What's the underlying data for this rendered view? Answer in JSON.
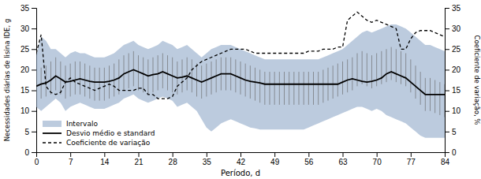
{
  "chart_data": {
    "type": "line",
    "xlabel": "Período, d",
    "ylabel": "Necessidades diárias de lisina IDE, g",
    "y2label": "Coeficiente de variação, %",
    "xlim": [
      0,
      84
    ],
    "xticks": [
      0,
      7,
      14,
      21,
      28,
      35,
      42,
      49,
      56,
      63,
      70,
      77,
      84
    ],
    "ylim": [
      0,
      35
    ],
    "yticks": [
      0,
      5,
      10,
      15,
      20,
      25,
      30,
      35
    ],
    "y2lim": [
      0,
      35
    ],
    "y2ticks": [
      0,
      5,
      10,
      15,
      20,
      25,
      30,
      35
    ],
    "grid": false,
    "legend": "lower left",
    "x": [
      0,
      1,
      2,
      3,
      4,
      5,
      6,
      7,
      8,
      9,
      10,
      11,
      12,
      13,
      14,
      15,
      16,
      17,
      18,
      19,
      20,
      21,
      22,
      23,
      24,
      25,
      26,
      27,
      28,
      29,
      30,
      31,
      32,
      33,
      34,
      35,
      36,
      37,
      38,
      39,
      40,
      41,
      42,
      43,
      44,
      45,
      46,
      47,
      48,
      49,
      50,
      51,
      52,
      53,
      54,
      55,
      56,
      57,
      58,
      59,
      60,
      61,
      62,
      63,
      64,
      65,
      66,
      67,
      68,
      69,
      70,
      71,
      72,
      73,
      74,
      75,
      76,
      77,
      78,
      79,
      80,
      81,
      82,
      83,
      84
    ],
    "series": [
      {
        "name": "Intervalo",
        "type": "area",
        "color": "#8fa8c8",
        "lower": [
          11.0,
          10.0,
          11.0,
          12.0,
          13.0,
          12.0,
          10.0,
          11.0,
          11.5,
          12.0,
          11.5,
          11.0,
          10.5,
          10.5,
          10.5,
          11.0,
          11.5,
          12.0,
          13.0,
          13.5,
          14.0,
          13.0,
          12.5,
          12.0,
          12.5,
          13.0,
          13.5,
          13.0,
          12.5,
          11.0,
          11.5,
          12.0,
          11.0,
          10.0,
          8.0,
          6.0,
          5.0,
          6.0,
          7.0,
          7.5,
          8.0,
          7.5,
          7.0,
          6.5,
          6.0,
          5.8,
          5.5,
          5.5,
          5.5,
          5.5,
          5.5,
          5.5,
          5.5,
          5.5,
          5.5,
          5.5,
          6.0,
          6.5,
          7.0,
          7.5,
          8.0,
          8.5,
          9.0,
          9.5,
          10.0,
          10.5,
          11.0,
          11.0,
          10.5,
          10.0,
          10.5,
          10.0,
          9.0,
          8.5,
          8.0,
          7.5,
          7.0,
          6.0,
          5.0,
          4.0,
          3.5,
          3.5,
          3.5,
          3.5,
          3.5
        ],
        "upper": [
          23.5,
          28.0,
          27.0,
          25.0,
          25.0,
          24.0,
          23.0,
          24.0,
          24.5,
          24.0,
          24.0,
          23.5,
          23.0,
          23.0,
          23.0,
          23.5,
          24.0,
          25.0,
          26.0,
          26.5,
          27.0,
          26.0,
          25.5,
          25.0,
          25.5,
          26.0,
          27.0,
          26.5,
          26.0,
          25.0,
          25.5,
          26.0,
          25.0,
          24.0,
          23.0,
          24.0,
          25.0,
          25.5,
          26.0,
          26.0,
          26.0,
          25.5,
          25.0,
          24.5,
          24.0,
          23.5,
          23.0,
          22.5,
          22.5,
          22.5,
          22.5,
          22.5,
          22.5,
          22.5,
          22.5,
          22.5,
          22.5,
          22.5,
          22.5,
          23.0,
          23.5,
          24.0,
          24.5,
          25.0,
          26.0,
          27.0,
          28.0,
          29.0,
          29.5,
          29.0,
          29.5,
          30.0,
          30.5,
          31.0,
          31.0,
          30.5,
          30.0,
          29.0,
          28.0,
          27.0,
          26.0,
          26.0,
          25.5,
          25.0,
          24.5
        ]
      },
      {
        "type": "errorbar",
        "color": "#666666",
        "lower": [
          12.5,
          13.0,
          13.5,
          14.0,
          15.0,
          14.0,
          13.0,
          13.5,
          14.0,
          14.0,
          13.5,
          13.0,
          12.5,
          12.5,
          12.5,
          13.0,
          13.5,
          14.0,
          15.0,
          15.5,
          16.0,
          15.0,
          14.5,
          14.0,
          14.5,
          15.0,
          15.5,
          15.0,
          14.5,
          14.0,
          14.5,
          15.0,
          14.5,
          13.5,
          13.0,
          13.5,
          14.0,
          14.5,
          15.0,
          15.0,
          15.0,
          14.5,
          14.0,
          13.5,
          13.0,
          12.5,
          12.0,
          11.5,
          11.5,
          11.5,
          11.5,
          11.5,
          11.5,
          11.5,
          11.5,
          11.5,
          11.5,
          11.5,
          11.5,
          12.0,
          12.5,
          13.0,
          13.5,
          14.0,
          14.5,
          15.0,
          16.0,
          16.5,
          16.0,
          15.5,
          16.0,
          16.5,
          17.0,
          17.5,
          17.0,
          16.5,
          16.0,
          14.5,
          13.0,
          11.5,
          10.0,
          10.0,
          9.5,
          9.0,
          8.5
        ],
        "upper": [
          19.5,
          20.5,
          21.0,
          22.0,
          23.0,
          22.0,
          21.0,
          21.5,
          22.0,
          22.0,
          21.5,
          21.0,
          20.5,
          20.5,
          20.5,
          21.0,
          21.5,
          22.5,
          23.5,
          24.0,
          24.5,
          23.5,
          23.0,
          22.5,
          23.0,
          23.5,
          24.0,
          23.5,
          23.0,
          22.0,
          22.5,
          23.0,
          22.5,
          21.5,
          21.0,
          21.5,
          22.0,
          22.5,
          23.0,
          23.0,
          23.0,
          22.5,
          22.0,
          21.5,
          21.0,
          20.5,
          20.0,
          19.5,
          19.5,
          19.5,
          19.5,
          19.5,
          19.5,
          19.5,
          19.5,
          19.5,
          19.5,
          19.5,
          19.5,
          20.0,
          20.5,
          21.0,
          21.5,
          22.0,
          22.5,
          23.0,
          24.0,
          24.5,
          24.0,
          23.5,
          24.0,
          24.5,
          25.0,
          25.5,
          25.0,
          24.5,
          24.0,
          22.5,
          21.0,
          19.5,
          18.0,
          18.0,
          17.5,
          17.0,
          16.5
        ]
      },
      {
        "name": "Desvio médio e standard",
        "type": "line",
        "color": "#000000",
        "line_style": "solid",
        "values": [
          16.0,
          16.5,
          16.8,
          17.5,
          18.5,
          17.8,
          17.0,
          17.2,
          17.5,
          17.8,
          17.5,
          17.2,
          17.0,
          17.0,
          17.0,
          17.2,
          17.5,
          18.0,
          19.0,
          19.5,
          20.0,
          19.5,
          19.0,
          18.5,
          18.8,
          19.0,
          19.5,
          19.0,
          18.5,
          18.0,
          18.2,
          18.5,
          18.0,
          17.5,
          17.0,
          17.5,
          18.0,
          18.5,
          19.0,
          19.0,
          19.0,
          18.5,
          18.0,
          17.5,
          17.2,
          17.0,
          16.8,
          16.5,
          16.5,
          16.5,
          16.5,
          16.5,
          16.5,
          16.5,
          16.5,
          16.5,
          16.5,
          16.5,
          16.5,
          16.5,
          16.5,
          16.5,
          16.5,
          17.0,
          17.5,
          17.8,
          17.5,
          17.2,
          17.0,
          17.2,
          17.5,
          18.0,
          19.0,
          19.5,
          19.0,
          18.5,
          18.0,
          17.0,
          16.0,
          15.0,
          14.0,
          14.0,
          14.0,
          14.0,
          14.0
        ]
      },
      {
        "name": "Coeficiente de variação",
        "type": "line",
        "axis": "y2",
        "color": "#000000",
        "line_style": "dashed",
        "values": [
          24.0,
          28.5,
          16.0,
          14.5,
          14.0,
          14.5,
          17.0,
          18.0,
          17.0,
          16.5,
          16.0,
          15.5,
          15.0,
          15.5,
          16.0,
          16.5,
          16.0,
          15.0,
          15.0,
          15.0,
          15.0,
          15.5,
          15.5,
          14.0,
          14.0,
          13.0,
          13.0,
          13.0,
          13.5,
          16.0,
          17.0,
          18.0,
          20.0,
          21.0,
          22.0,
          22.5,
          23.0,
          23.5,
          24.0,
          24.5,
          25.0,
          25.0,
          25.0,
          25.0,
          24.5,
          24.0,
          24.0,
          24.0,
          24.0,
          24.0,
          24.0,
          24.0,
          24.0,
          24.0,
          24.0,
          24.0,
          24.5,
          24.5,
          24.5,
          25.0,
          25.0,
          25.0,
          25.5,
          25.5,
          32.0,
          33.0,
          34.0,
          33.0,
          32.0,
          31.5,
          32.0,
          31.5,
          31.0,
          30.5,
          30.0,
          25.0,
          25.0,
          27.5,
          29.0,
          29.5,
          29.5,
          29.5,
          29.0,
          28.5,
          28.0
        ]
      }
    ]
  }
}
